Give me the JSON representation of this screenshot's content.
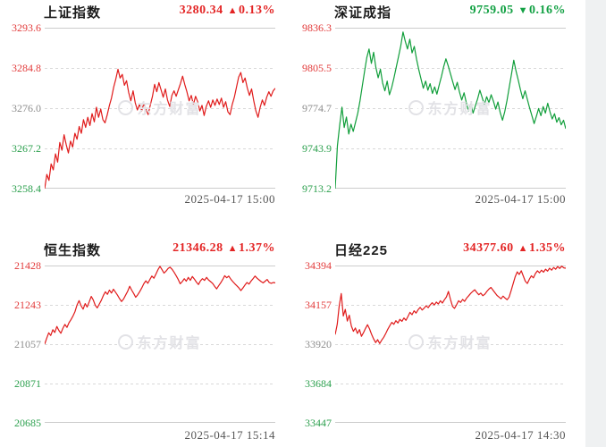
{
  "page": {
    "watermark_text": "东方财富",
    "background_color": "#ffffff",
    "right_strip_color": "#eff1f2"
  },
  "theme": {
    "up_color": "#e32424",
    "down_color": "#13a144",
    "grid_color": "#d8d8d8",
    "y_label_colors": [
      "#e23b3b",
      "#e23b3b",
      "#8e8e8e",
      "#2ca04e",
      "#2ca04e"
    ],
    "timestamp_color": "#555555"
  },
  "charts": [
    {
      "title": "上证指数",
      "price": "3280.34",
      "arrow": "▲",
      "change_pct": "0.13%",
      "direction": "up",
      "accent": "#e32424",
      "timestamp": "2025-04-17 15:00",
      "y_labels": [
        "3293.6",
        "3284.8",
        "3276.0",
        "3267.2",
        "3258.4"
      ]
    },
    {
      "title": "深证成指",
      "price": "9759.05",
      "arrow": "▼",
      "change_pct": "0.16%",
      "direction": "down",
      "accent": "#13a144",
      "timestamp": "2025-04-17 15:00",
      "y_labels": [
        "9836.3",
        "9805.5",
        "9774.7",
        "9743.9",
        "9713.2"
      ]
    },
    {
      "title": "恒生指数",
      "price": "21346.28",
      "arrow": "▲",
      "change_pct": "1.37%",
      "direction": "up",
      "accent": "#e32424",
      "timestamp": "2025-04-17 15:14",
      "y_labels": [
        "21428",
        "21243",
        "21057",
        "20871",
        "20685"
      ]
    },
    {
      "title": "日经225",
      "price": "34377.60",
      "arrow": "▲",
      "change_pct": "1.35%",
      "direction": "up",
      "accent": "#e32424",
      "timestamp": "2025-04-17 14:30",
      "y_labels": [
        "34394",
        "34157",
        "33920",
        "33684",
        "33447"
      ]
    }
  ],
  "chart_data": [
    {
      "type": "line",
      "title": "上证指数",
      "close": 3280.34,
      "change_pct": 0.13,
      "time": "2025-04-17 15:00",
      "ylim": [
        3258.4,
        3293.6
      ],
      "y_ticks": [
        3293.6,
        3284.8,
        3276.0,
        3267.2,
        3258.4
      ],
      "line_color": "#e01b1b",
      "grid": true,
      "values": [
        3258.4,
        3261.5,
        3260.2,
        3263.8,
        3262.5,
        3266.0,
        3264.2,
        3268.5,
        3266.8,
        3270.2,
        3268.0,
        3266.2,
        3268.8,
        3267.5,
        3270.5,
        3269.2,
        3272.0,
        3270.5,
        3273.5,
        3271.8,
        3274.0,
        3272.2,
        3274.8,
        3273.0,
        3276.2,
        3274.0,
        3275.8,
        3273.5,
        3272.8,
        3274.5,
        3276.5,
        3278.2,
        3280.6,
        3282.4,
        3284.5,
        3282.6,
        3283.4,
        3281.0,
        3282.0,
        3279.4,
        3277.6,
        3279.8,
        3277.2,
        3275.6,
        3276.8,
        3275.4,
        3277.0,
        3275.8,
        3274.6,
        3276.6,
        3278.6,
        3281.2,
        3279.6,
        3281.6,
        3280.0,
        3278.4,
        3280.2,
        3277.8,
        3276.4,
        3278.8,
        3279.8,
        3278.6,
        3280.0,
        3281.4,
        3283.0,
        3281.2,
        3279.6,
        3277.6,
        3278.8,
        3276.8,
        3278.6,
        3277.4,
        3275.4,
        3276.6,
        3274.4,
        3276.4,
        3277.6,
        3276.2,
        3277.8,
        3276.6,
        3278.0,
        3276.8,
        3278.2,
        3276.2,
        3277.4,
        3275.2,
        3274.6,
        3276.8,
        3278.4,
        3280.6,
        3282.8,
        3283.8,
        3281.6,
        3282.6,
        3280.4,
        3278.8,
        3280.2,
        3277.6,
        3275.4,
        3274.0,
        3276.2,
        3277.8,
        3276.6,
        3278.4,
        3279.6,
        3278.6,
        3279.8,
        3280.34
      ]
    },
    {
      "type": "line",
      "title": "深证成指",
      "close": 9759.05,
      "change_pct": -0.16,
      "time": "2025-04-17 15:00",
      "ylim": [
        9713.2,
        9836.3
      ],
      "y_ticks": [
        9836.3,
        9805.5,
        9774.7,
        9743.9,
        9713.2
      ],
      "line_color": "#109e3a",
      "grid": true,
      "values": [
        9713.2,
        9746.0,
        9762.0,
        9775.5,
        9760.0,
        9768.0,
        9755.0,
        9762.5,
        9757.0,
        9764.0,
        9771.0,
        9780.5,
        9792.0,
        9803.0,
        9813.5,
        9820.0,
        9809.0,
        9817.5,
        9806.0,
        9798.0,
        9804.5,
        9794.0,
        9788.0,
        9795.5,
        9785.0,
        9790.5,
        9798.0,
        9806.0,
        9814.0,
        9822.5,
        9833.0,
        9826.0,
        9820.0,
        9827.5,
        9817.0,
        9822.0,
        9812.0,
        9804.0,
        9797.0,
        9790.0,
        9795.5,
        9788.5,
        9793.5,
        9786.0,
        9791.0,
        9785.5,
        9792.5,
        9799.0,
        9806.5,
        9812.5,
        9807.0,
        9801.0,
        9795.0,
        9789.0,
        9794.5,
        9787.0,
        9781.0,
        9786.5,
        9779.0,
        9772.5,
        9778.0,
        9771.0,
        9776.5,
        9782.0,
        9788.5,
        9783.0,
        9777.5,
        9783.5,
        9779.0,
        9785.0,
        9780.0,
        9774.0,
        9779.5,
        9771.5,
        9765.5,
        9772.0,
        9780.5,
        9791.0,
        9801.0,
        9811.5,
        9803.0,
        9796.0,
        9788.5,
        9782.0,
        9788.0,
        9781.5,
        9775.0,
        9769.0,
        9763.0,
        9768.5,
        9774.5,
        9769.0,
        9776.0,
        9771.0,
        9778.5,
        9772.0,
        9766.5,
        9770.5,
        9764.0,
        9767.5,
        9762.0,
        9765.5,
        9759.05
      ]
    },
    {
      "type": "line",
      "title": "恒生指数",
      "close": 21346.28,
      "change_pct": 1.37,
      "time": "2025-04-17 15:14",
      "ylim": [
        20685,
        21428
      ],
      "y_ticks": [
        21428,
        21243,
        21057,
        20871,
        20685
      ],
      "line_color": "#e01b1b",
      "grid": true,
      "values": [
        21057,
        21085,
        21110,
        21098,
        21125,
        21112,
        21140,
        21122,
        21108,
        21132,
        21150,
        21136,
        21158,
        21172,
        21190,
        21210,
        21242,
        21262,
        21238,
        21222,
        21248,
        21232,
        21256,
        21282,
        21266,
        21240,
        21228,
        21246,
        21264,
        21286,
        21304,
        21292,
        21312,
        21298,
        21316,
        21302,
        21288,
        21272,
        21258,
        21270,
        21288,
        21306,
        21330,
        21312,
        21296,
        21278,
        21290,
        21305,
        21322,
        21342,
        21356,
        21344,
        21362,
        21378,
        21368,
        21388,
        21408,
        21424,
        21408,
        21392,
        21402,
        21414,
        21420,
        21410,
        21396,
        21380,
        21362,
        21342,
        21352,
        21366,
        21354,
        21372,
        21358,
        21376,
        21364,
        21350,
        21338,
        21356,
        21366,
        21358,
        21372,
        21360,
        21352,
        21344,
        21330,
        21318,
        21332,
        21346,
        21362,
        21380,
        21370,
        21378,
        21364,
        21352,
        21342,
        21332,
        21322,
        21310,
        21322,
        21336,
        21348,
        21340,
        21354,
        21366,
        21378,
        21368,
        21360,
        21352,
        21346,
        21354,
        21362,
        21348,
        21344,
        21348,
        21346.28
      ]
    },
    {
      "type": "line",
      "title": "日经225",
      "close": 34377.6,
      "change_pct": 1.35,
      "time": "2025-04-17 14:30",
      "ylim": [
        33447,
        34394
      ],
      "y_ticks": [
        34394,
        34157,
        33920,
        33684,
        33447
      ],
      "line_color": "#e01b1b",
      "grid": true,
      "values": [
        33978,
        34040,
        34150,
        34225,
        34090,
        34130,
        34060,
        34095,
        34030,
        33998,
        34018,
        33985,
        34008,
        33968,
        33990,
        34015,
        34038,
        34012,
        33980,
        33952,
        33930,
        33948,
        33925,
        33945,
        33962,
        33985,
        34010,
        34032,
        34052,
        34040,
        34062,
        34048,
        34070,
        34058,
        34078,
        34064,
        34088,
        34112,
        34098,
        34122,
        34108,
        34128,
        34142,
        34126,
        34138,
        34152,
        34140,
        34158,
        34170,
        34156,
        34174,
        34162,
        34182,
        34168,
        34188,
        34205,
        34238,
        34190,
        34148,
        34136,
        34158,
        34182,
        34172,
        34190,
        34178,
        34198,
        34212,
        34226,
        34238,
        34248,
        34232,
        34218,
        34228,
        34212,
        34222,
        34238,
        34252,
        34262,
        34246,
        34230,
        34214,
        34204,
        34194,
        34210,
        34198,
        34188,
        34204,
        34244,
        34286,
        34326,
        34356,
        34340,
        34362,
        34330,
        34300,
        34286,
        34312,
        34332,
        34320,
        34346,
        34362,
        34350,
        34366,
        34354,
        34372,
        34360,
        34378,
        34366,
        34382,
        34372,
        34388,
        34376,
        34390,
        34380,
        34377.6
      ]
    }
  ]
}
